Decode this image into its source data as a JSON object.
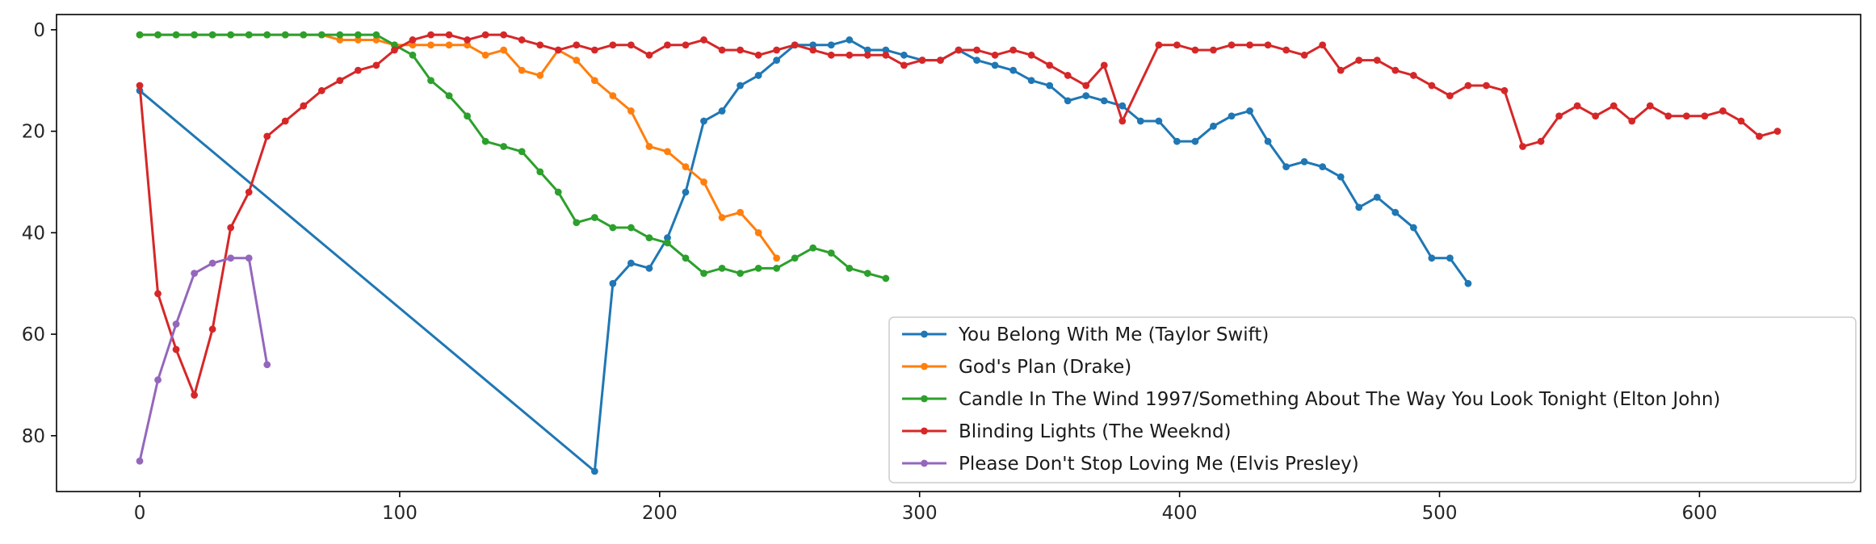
{
  "chart_data": {
    "type": "line",
    "title": "",
    "xlabel": "",
    "ylabel": "",
    "xlim": [
      -32,
      662
    ],
    "ylim": [
      91,
      -3
    ],
    "y_inverted": true,
    "x_ticks": [
      0,
      100,
      200,
      300,
      400,
      500,
      600
    ],
    "y_ticks": [
      0,
      20,
      40,
      60,
      80
    ],
    "grid": false,
    "legend_position": "lower-right",
    "series": [
      {
        "name": "You Belong With Me (Taylor Swift)",
        "color": "#1f77b4",
        "points": [
          [
            0,
            12
          ],
          [
            175,
            87
          ],
          [
            182,
            50
          ],
          [
            189,
            46
          ],
          [
            196,
            47
          ],
          [
            203,
            41
          ],
          [
            210,
            32
          ],
          [
            217,
            18
          ],
          [
            224,
            16
          ],
          [
            231,
            11
          ],
          [
            238,
            9
          ],
          [
            245,
            6
          ],
          [
            252,
            3
          ],
          [
            259,
            3
          ],
          [
            266,
            3
          ],
          [
            273,
            2
          ],
          [
            280,
            4
          ],
          [
            287,
            4
          ],
          [
            294,
            5
          ],
          [
            301,
            6
          ],
          [
            308,
            6
          ],
          [
            315,
            4
          ],
          [
            322,
            6
          ],
          [
            329,
            7
          ],
          [
            336,
            8
          ],
          [
            343,
            10
          ],
          [
            350,
            11
          ],
          [
            357,
            14
          ],
          [
            364,
            13
          ],
          [
            371,
            14
          ],
          [
            378,
            15
          ],
          [
            385,
            18
          ],
          [
            392,
            18
          ],
          [
            399,
            22
          ],
          [
            406,
            22
          ],
          [
            413,
            19
          ],
          [
            420,
            17
          ],
          [
            427,
            16
          ],
          [
            434,
            22
          ],
          [
            441,
            27
          ],
          [
            448,
            26
          ],
          [
            455,
            27
          ],
          [
            462,
            29
          ],
          [
            469,
            35
          ],
          [
            476,
            33
          ],
          [
            483,
            36
          ],
          [
            490,
            39
          ],
          [
            497,
            45
          ],
          [
            504,
            45
          ],
          [
            511,
            50
          ]
        ]
      },
      {
        "name": "God's Plan (Drake)",
        "color": "#ff7f0e",
        "points": [
          [
            0,
            1
          ],
          [
            7,
            1
          ],
          [
            14,
            1
          ],
          [
            21,
            1
          ],
          [
            28,
            1
          ],
          [
            35,
            1
          ],
          [
            42,
            1
          ],
          [
            49,
            1
          ],
          [
            56,
            1
          ],
          [
            63,
            1
          ],
          [
            70,
            1
          ],
          [
            77,
            2
          ],
          [
            84,
            2
          ],
          [
            91,
            2
          ],
          [
            98,
            3
          ],
          [
            105,
            3
          ],
          [
            112,
            3
          ],
          [
            119,
            3
          ],
          [
            126,
            3
          ],
          [
            133,
            5
          ],
          [
            140,
            4
          ],
          [
            147,
            8
          ],
          [
            154,
            9
          ],
          [
            161,
            4
          ],
          [
            168,
            6
          ],
          [
            175,
            10
          ],
          [
            182,
            13
          ],
          [
            189,
            16
          ],
          [
            196,
            23
          ],
          [
            203,
            24
          ],
          [
            210,
            27
          ],
          [
            217,
            30
          ],
          [
            224,
            37
          ],
          [
            231,
            36
          ],
          [
            238,
            40
          ],
          [
            245,
            45
          ]
        ]
      },
      {
        "name": "Candle In The Wind 1997/Something About The Way You Look Tonight (Elton John)",
        "color": "#2ca02c",
        "points": [
          [
            0,
            1
          ],
          [
            7,
            1
          ],
          [
            14,
            1
          ],
          [
            21,
            1
          ],
          [
            28,
            1
          ],
          [
            35,
            1
          ],
          [
            42,
            1
          ],
          [
            49,
            1
          ],
          [
            56,
            1
          ],
          [
            63,
            1
          ],
          [
            70,
            1
          ],
          [
            77,
            1
          ],
          [
            84,
            1
          ],
          [
            91,
            1
          ],
          [
            98,
            3
          ],
          [
            105,
            5
          ],
          [
            112,
            10
          ],
          [
            119,
            13
          ],
          [
            126,
            17
          ],
          [
            133,
            22
          ],
          [
            140,
            23
          ],
          [
            147,
            24
          ],
          [
            154,
            28
          ],
          [
            161,
            32
          ],
          [
            168,
            38
          ],
          [
            175,
            37
          ],
          [
            182,
            39
          ],
          [
            189,
            39
          ],
          [
            196,
            41
          ],
          [
            203,
            42
          ],
          [
            210,
            45
          ],
          [
            217,
            48
          ],
          [
            224,
            47
          ],
          [
            231,
            48
          ],
          [
            238,
            47
          ],
          [
            245,
            47
          ],
          [
            252,
            45
          ],
          [
            259,
            43
          ],
          [
            266,
            44
          ],
          [
            273,
            47
          ],
          [
            280,
            48
          ],
          [
            287,
            49
          ]
        ]
      },
      {
        "name": "Blinding Lights (The Weeknd)",
        "color": "#d62728",
        "points": [
          [
            0,
            11
          ],
          [
            7,
            52
          ],
          [
            14,
            63
          ],
          [
            21,
            72
          ],
          [
            28,
            59
          ],
          [
            35,
            39
          ],
          [
            42,
            32
          ],
          [
            49,
            21
          ],
          [
            56,
            18
          ],
          [
            63,
            15
          ],
          [
            70,
            12
          ],
          [
            77,
            10
          ],
          [
            84,
            8
          ],
          [
            91,
            7
          ],
          [
            98,
            4
          ],
          [
            105,
            2
          ],
          [
            112,
            1
          ],
          [
            119,
            1
          ],
          [
            126,
            2
          ],
          [
            133,
            1
          ],
          [
            140,
            1
          ],
          [
            147,
            2
          ],
          [
            154,
            3
          ],
          [
            161,
            4
          ],
          [
            168,
            3
          ],
          [
            175,
            4
          ],
          [
            182,
            3
          ],
          [
            189,
            3
          ],
          [
            196,
            5
          ],
          [
            203,
            3
          ],
          [
            210,
            3
          ],
          [
            217,
            2
          ],
          [
            224,
            4
          ],
          [
            231,
            4
          ],
          [
            238,
            5
          ],
          [
            245,
            4
          ],
          [
            252,
            3
          ],
          [
            259,
            4
          ],
          [
            266,
            5
          ],
          [
            273,
            5
          ],
          [
            280,
            5
          ],
          [
            287,
            5
          ],
          [
            294,
            7
          ],
          [
            301,
            6
          ],
          [
            308,
            6
          ],
          [
            315,
            4
          ],
          [
            322,
            4
          ],
          [
            329,
            5
          ],
          [
            336,
            4
          ],
          [
            343,
            5
          ],
          [
            350,
            7
          ],
          [
            357,
            9
          ],
          [
            364,
            11
          ],
          [
            371,
            7
          ],
          [
            378,
            18
          ],
          [
            392,
            3
          ],
          [
            399,
            3
          ],
          [
            406,
            4
          ],
          [
            413,
            4
          ],
          [
            420,
            3
          ],
          [
            427,
            3
          ],
          [
            434,
            3
          ],
          [
            441,
            4
          ],
          [
            448,
            5
          ],
          [
            455,
            3
          ],
          [
            462,
            8
          ],
          [
            469,
            6
          ],
          [
            476,
            6
          ],
          [
            483,
            8
          ],
          [
            490,
            9
          ],
          [
            497,
            11
          ],
          [
            504,
            13
          ],
          [
            511,
            11
          ],
          [
            518,
            11
          ],
          [
            525,
            12
          ],
          [
            532,
            23
          ],
          [
            539,
            22
          ],
          [
            546,
            17
          ],
          [
            553,
            15
          ],
          [
            560,
            17
          ],
          [
            567,
            15
          ],
          [
            574,
            18
          ],
          [
            581,
            15
          ],
          [
            588,
            17
          ],
          [
            595,
            17
          ],
          [
            602,
            17
          ],
          [
            609,
            16
          ],
          [
            616,
            18
          ],
          [
            623,
            21
          ],
          [
            630,
            20
          ]
        ]
      },
      {
        "name": "Please Don't Stop Loving Me (Elvis Presley)",
        "color": "#9467bd",
        "points": [
          [
            0,
            85
          ],
          [
            7,
            69
          ],
          [
            14,
            58
          ],
          [
            21,
            48
          ],
          [
            28,
            46
          ],
          [
            35,
            45
          ],
          [
            42,
            45
          ],
          [
            49,
            66
          ]
        ]
      }
    ]
  }
}
